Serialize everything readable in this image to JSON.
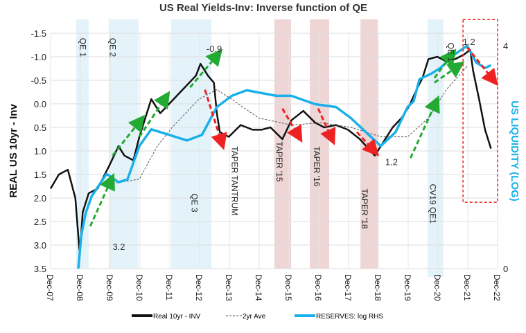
{
  "chart_data": {
    "type": "line",
    "title": "US Real Yields-Inv: Inverse function of QE",
    "ylabel": "REAL US 10yr - Inv",
    "y2label": "US LIQUIDITY (LOG)",
    "ylim": [
      -1.5,
      3.5
    ],
    "y_inverted": true,
    "y_ticks": [
      "-1.5",
      "-1.0",
      "-0.5",
      "0.0",
      "0.5",
      "1.0",
      "1.5",
      "2.0",
      "2.5",
      "3.0",
      "3.5"
    ],
    "y_tick_values": [
      -1.5,
      -1.0,
      -0.5,
      0,
      0.5,
      1.0,
      1.5,
      2.0,
      2.5,
      3.0,
      3.5
    ],
    "y2lim": [
      0,
      4
    ],
    "y2_ticks": [
      "0",
      "4"
    ],
    "y2_tick_values": [
      0,
      4
    ],
    "xlim": [
      2007.92,
      2022.92
    ],
    "x_ticks": [
      "Dec-07",
      "Dec-08",
      "Dec-09",
      "Dec-10",
      "Dec-11",
      "Dec-12",
      "Dec-13",
      "Dec-14",
      "Dec-15",
      "Dec-16",
      "Dec-17",
      "Dec-18",
      "Dec-19",
      "Dec-20",
      "Dec-21",
      "Dec-22"
    ],
    "grid": true,
    "legend": "bottom",
    "series": [
      {
        "name": "Real 10yr - INV",
        "axis": "left",
        "color": "#111111",
        "style": "solid",
        "x": [
          2007.92,
          2008.2,
          2008.5,
          2008.75,
          2008.9,
          2009.0,
          2009.2,
          2009.5,
          2009.9,
          2010.2,
          2010.4,
          2010.7,
          2010.9,
          2011.1,
          2011.3,
          2011.6,
          2011.9,
          2012.2,
          2012.5,
          2012.8,
          2012.95,
          2013.2,
          2013.4,
          2013.5,
          2013.6,
          2013.9,
          2014.3,
          2014.7,
          2015.0,
          2015.3,
          2015.7,
          2016.0,
          2016.4,
          2016.8,
          2017.1,
          2017.5,
          2017.9,
          2018.3,
          2018.8,
          2019.1,
          2019.4,
          2019.7,
          2019.95,
          2020.2,
          2020.4,
          2020.6,
          2020.9,
          2021.2,
          2021.5,
          2021.8,
          2022.0,
          2022.1,
          2022.3,
          2022.5,
          2022.7
        ],
        "y": [
          1.8,
          1.5,
          1.4,
          2.0,
          3.2,
          2.3,
          1.9,
          1.8,
          1.3,
          0.9,
          1.1,
          1.2,
          0.7,
          0.3,
          -0.1,
          0.2,
          0.0,
          -0.2,
          -0.4,
          -0.6,
          -0.85,
          -0.6,
          -0.45,
          0.2,
          0.6,
          0.7,
          0.45,
          0.55,
          0.55,
          0.5,
          0.75,
          0.35,
          0.15,
          0.4,
          0.5,
          0.45,
          0.55,
          0.75,
          1.1,
          0.8,
          0.5,
          0.3,
          0.05,
          -0.3,
          -0.55,
          -0.95,
          -1.0,
          -0.9,
          -0.95,
          -1.05,
          -1.15,
          -0.7,
          -0.1,
          0.55,
          0.95
        ]
      },
      {
        "name": "2yr Ave",
        "axis": "left",
        "color": "#555555",
        "style": "dashed",
        "x": [
          2009.9,
          2010.9,
          2011.5,
          2012.0,
          2012.9,
          2013.5,
          2014.0,
          2014.9,
          2016.0,
          2017.0,
          2018.0,
          2019.0,
          2019.9,
          2020.6,
          2021.2,
          2021.9
        ],
        "y": [
          1.7,
          1.6,
          0.9,
          0.5,
          -0.1,
          -0.3,
          -0.1,
          0.3,
          0.45,
          0.4,
          0.5,
          0.7,
          0.7,
          0.3,
          -0.3,
          -0.8
        ]
      },
      {
        "name": "RESERVES: log RHS",
        "axis": "right",
        "color": "#1ab0ea",
        "style": "solid",
        "x": [
          2008.85,
          2008.95,
          2009.1,
          2009.3,
          2009.8,
          2010.2,
          2010.5,
          2010.9,
          2011.3,
          2011.9,
          2012.5,
          2013.0,
          2013.5,
          2014.0,
          2014.5,
          2015.0,
          2015.5,
          2016.0,
          2016.8,
          2017.5,
          2018.0,
          2018.6,
          2019.0,
          2019.5,
          2019.9,
          2020.1,
          2020.3,
          2020.7,
          2021.0,
          2021.5,
          2021.9,
          2022.2,
          2022.5,
          2022.7
        ],
        "y": [
          0.0,
          0.6,
          1.0,
          1.3,
          1.7,
          1.55,
          1.6,
          2.2,
          2.5,
          2.4,
          2.3,
          2.4,
          2.9,
          3.1,
          3.2,
          3.15,
          3.1,
          3.1,
          2.95,
          2.9,
          2.7,
          2.4,
          2.2,
          2.45,
          2.9,
          3.0,
          3.4,
          3.5,
          3.6,
          3.85,
          4.0,
          3.7,
          3.6,
          3.65
        ]
      }
    ],
    "shaded_periods": [
      {
        "label": "QE 1",
        "from": 2008.78,
        "to": 2009.2,
        "color": "#e3f3f9"
      },
      {
        "label": "QE 2",
        "from": 2009.87,
        "to": 2010.87,
        "color": "#e3f3f9"
      },
      {
        "label": "QE 3",
        "from": 2011.97,
        "to": 2013.32,
        "color": "#e3f3f9"
      },
      {
        "label": "TAPER '15",
        "from": 2015.43,
        "to": 2015.99,
        "color": "#eed6d6"
      },
      {
        "label": "TAPER '16",
        "from": 2016.62,
        "to": 2017.27,
        "color": "#eed6d6"
      },
      {
        "label": "TAPER '18",
        "from": 2018.32,
        "to": 2018.9,
        "color": "#eed6d6"
      },
      {
        "label": "CV19 QE1",
        "from": 2020.57,
        "to": 2021.1,
        "color": "#e3f3f9"
      }
    ],
    "vertical_labels": [
      {
        "text": "QE 1",
        "x": 2009.0,
        "y": -1.4
      },
      {
        "text": "QE 2",
        "x": 2010.0,
        "y": -1.4
      },
      {
        "text": "QE 3",
        "x": 2012.75,
        "y": 1.9
      },
      {
        "text": "TAPER TANTRUM",
        "x": 2014.1,
        "y": 0.9
      },
      {
        "text": "TAPER '15",
        "x": 2015.6,
        "y": 0.8
      },
      {
        "text": "TAPER '16",
        "x": 2016.85,
        "y": 0.9
      },
      {
        "text": "TAPER '18",
        "x": 2018.45,
        "y": 1.8
      },
      {
        "text": "CV19 QE1",
        "x": 2020.75,
        "y": 1.7
      },
      {
        "text": "QE 1",
        "x": 2021.35,
        "y": -1.3
      }
    ],
    "value_labels": [
      {
        "text": "3.2",
        "x": 2010.0,
        "y": 3.1
      },
      {
        "text": "-0.9",
        "x": 2013.15,
        "y": -1.1
      },
      {
        "text": "1.2",
        "x": 2019.15,
        "y": 1.3
      },
      {
        "text": "1.2",
        "x": 2021.75,
        "y": -1.25
      }
    ],
    "trend_arrows": [
      {
        "color": "#22aa33",
        "from": [
          2009.25,
          2.6
        ],
        "to": [
          2010.0,
          1.55
        ]
      },
      {
        "color": "#22aa33",
        "from": [
          2010.0,
          1.1
        ],
        "to": [
          2011.0,
          0.3
        ]
      },
      {
        "color": "#22aa33",
        "from": [
          2010.9,
          0.7
        ],
        "to": [
          2011.85,
          -0.2
        ]
      },
      {
        "color": "#22aa33",
        "from": [
          2012.6,
          -0.35
        ],
        "to": [
          2013.6,
          -1.1
        ]
      },
      {
        "color": "#22aa33",
        "from": [
          2020.8,
          -0.45
        ],
        "to": [
          2021.7,
          -0.85
        ]
      },
      {
        "color": "#22aa33",
        "from": [
          2020.0,
          1.15
        ],
        "to": [
          2020.9,
          -0.1
        ]
      },
      {
        "color": "#22aa33",
        "from": [
          2020.8,
          -0.55
        ],
        "to": [
          2021.45,
          -1.1
        ]
      },
      {
        "color": "#ee2222",
        "from": [
          2013.1,
          -0.3
        ],
        "to": [
          2013.7,
          0.9
        ]
      },
      {
        "color": "#ee2222",
        "from": [
          2015.7,
          0.1
        ],
        "to": [
          2016.3,
          0.75
        ]
      },
      {
        "color": "#ee2222",
        "from": [
          2016.9,
          0.1
        ],
        "to": [
          2017.4,
          0.8
        ]
      },
      {
        "color": "#ee2222",
        "from": [
          2018.2,
          0.6
        ],
        "to": [
          2018.85,
          1.05
        ]
      },
      {
        "color": "#ee2222",
        "from": [
          2021.9,
          -1.2
        ],
        "to": [
          2022.85,
          -0.45
        ]
      }
    ],
    "highlight_box": {
      "color": "#ee2222",
      "x_from": 2021.76,
      "x_to": 2022.92,
      "y_from": -1.79,
      "y_to": 2.09
    }
  }
}
